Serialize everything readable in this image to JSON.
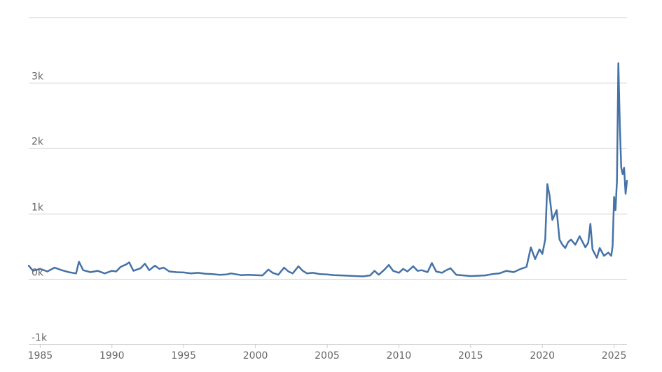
{
  "chart_data": {
    "type": "line",
    "title": "",
    "xlabel": "",
    "ylabel": "",
    "ylim": [
      -1000,
      4000
    ],
    "xlim": [
      1984.2,
      2025.9
    ],
    "grid": true,
    "legend": "none",
    "y_ticks": [
      {
        "value": -1000,
        "label": "-1k"
      },
      {
        "value": 0,
        "label": "0k"
      },
      {
        "value": 1000,
        "label": "1k"
      },
      {
        "value": 2000,
        "label": "2k"
      },
      {
        "value": 3000,
        "label": "3k"
      },
      {
        "value": 4000,
        "label": ""
      }
    ],
    "x_ticks": [
      {
        "value": 1985,
        "label": "1985"
      },
      {
        "value": 1990,
        "label": "1990"
      },
      {
        "value": 1995,
        "label": "1995"
      },
      {
        "value": 2000,
        "label": "2000"
      },
      {
        "value": 2005,
        "label": "2005"
      },
      {
        "value": 2010,
        "label": "2010"
      },
      {
        "value": 2015,
        "label": "2015"
      },
      {
        "value": 2020,
        "label": "2020"
      },
      {
        "value": 2025,
        "label": "2025"
      }
    ],
    "series": [
      {
        "color": "#4572a7",
        "x": [
          1984.2,
          1984.5,
          1985.0,
          1985.5,
          1986.0,
          1986.5,
          1987.0,
          1987.5,
          1987.7,
          1988.0,
          1988.5,
          1989.0,
          1989.5,
          1990.0,
          1990.3,
          1990.6,
          1991.0,
          1991.2,
          1991.5,
          1992.0,
          1992.3,
          1992.6,
          1993.0,
          1993.3,
          1993.6,
          1994.0,
          1994.5,
          1995.0,
          1995.5,
          1996.0,
          1996.5,
          1997.0,
          1997.5,
          1998.0,
          1998.3,
          1998.6,
          1999.0,
          1999.5,
          2000.0,
          2000.5,
          2000.9,
          2001.2,
          2001.6,
          2002.0,
          2002.3,
          2002.6,
          2003.0,
          2003.3,
          2003.6,
          2004.0,
          2004.5,
          2005.0,
          2005.5,
          2006.0,
          2006.5,
          2007.0,
          2007.5,
          2008.0,
          2008.3,
          2008.6,
          2009.0,
          2009.3,
          2009.6,
          2010.0,
          2010.3,
          2010.6,
          2011.0,
          2011.3,
          2011.6,
          2012.0,
          2012.3,
          2012.6,
          2013.0,
          2013.3,
          2013.6,
          2014.0,
          2014.5,
          2015.0,
          2015.5,
          2016.0,
          2016.5,
          2017.0,
          2017.5,
          2018.0,
          2018.5,
          2018.9,
          2019.2,
          2019.5,
          2019.8,
          2020.0,
          2020.2,
          2020.35,
          2020.5,
          2020.7,
          2021.0,
          2021.2,
          2021.4,
          2021.6,
          2021.8,
          2022.0,
          2022.3,
          2022.6,
          2023.0,
          2023.2,
          2023.35,
          2023.5,
          2023.8,
          2024.0,
          2024.3,
          2024.6,
          2024.8,
          2024.9,
          2025.0,
          2025.1,
          2025.2,
          2025.3,
          2025.4,
          2025.5,
          2025.6,
          2025.7,
          2025.8,
          2025.9
        ],
        "y": [
          200,
          120,
          150,
          110,
          170,
          130,
          100,
          80,
          260,
          130,
          100,
          120,
          80,
          120,
          110,
          180,
          220,
          250,
          120,
          160,
          230,
          130,
          200,
          150,
          170,
          110,
          100,
          95,
          80,
          90,
          75,
          70,
          60,
          65,
          80,
          70,
          55,
          60,
          55,
          50,
          140,
          90,
          60,
          170,
          110,
          80,
          190,
          120,
          80,
          90,
          70,
          65,
          55,
          50,
          45,
          40,
          35,
          50,
          120,
          60,
          140,
          210,
          120,
          90,
          150,
          110,
          190,
          120,
          130,
          100,
          240,
          110,
          90,
          130,
          160,
          60,
          50,
          40,
          45,
          50,
          70,
          80,
          120,
          100,
          150,
          180,
          480,
          300,
          450,
          380,
          600,
          1450,
          1280,
          900,
          1050,
          600,
          520,
          470,
          560,
          600,
          520,
          650,
          480,
          550,
          840,
          450,
          320,
          470,
          350,
          400,
          350,
          500,
          1250,
          1050,
          1500,
          3300,
          2350,
          1700,
          1600,
          1700,
          1300,
          1500
        ]
      }
    ]
  }
}
